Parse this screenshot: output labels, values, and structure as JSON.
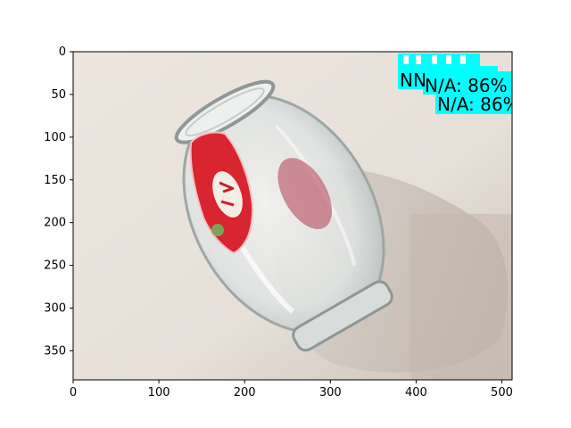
{
  "figure": {
    "x_ticks": [
      "0",
      "100",
      "200",
      "300",
      "400",
      "500"
    ],
    "y_ticks": [
      "0",
      "50",
      "100",
      "150",
      "200",
      "250",
      "300",
      "350"
    ],
    "x_tick_values": [
      0,
      100,
      200,
      300,
      400,
      500
    ],
    "y_tick_values": [
      0,
      50,
      100,
      150,
      200,
      250,
      300,
      350
    ],
    "image_width_units": 512,
    "image_height_units": 384
  },
  "detections": [
    {
      "label": "NN",
      "color": "#00ffff"
    },
    {
      "label": "N/A: 86%",
      "color": "#00ffff"
    },
    {
      "label": "N/A: 86%",
      "color": "#00ffff"
    }
  ],
  "colors": {
    "background_wall": "#e8e2dc",
    "shadow": "#cfc6be",
    "glass_edge": "#9fa7a5",
    "label_red": "#d9252f",
    "detection_box": "#00ffff"
  }
}
